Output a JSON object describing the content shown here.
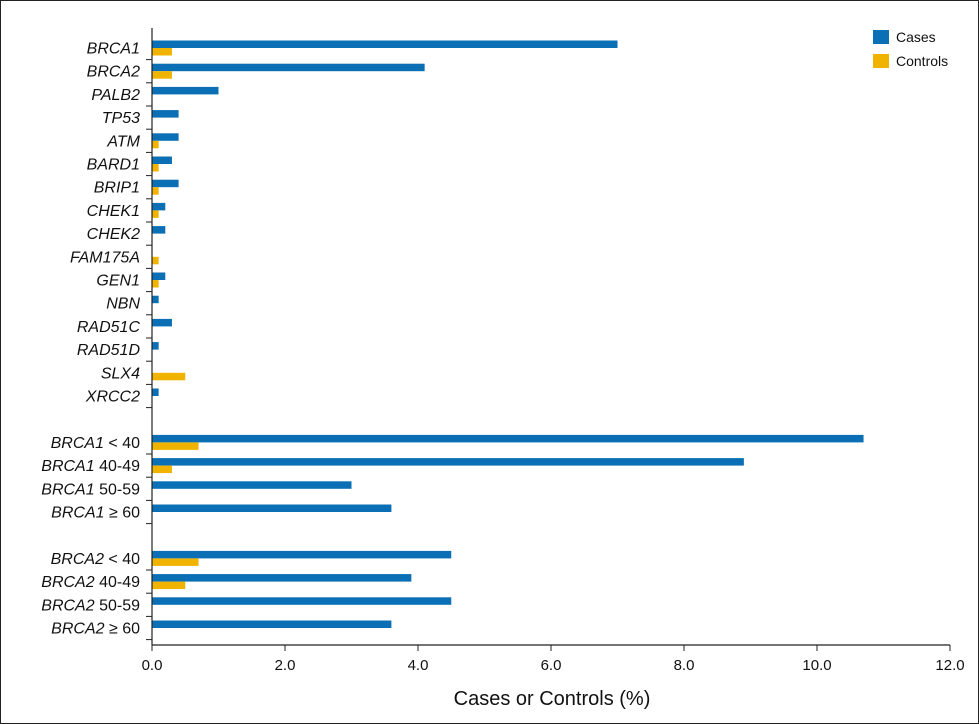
{
  "chart_data": {
    "type": "bar",
    "orientation": "horizontal",
    "xlabel": "Cases or Controls (%)",
    "xlim": [
      0,
      12
    ],
    "xticks": [
      "0.0",
      "2.0",
      "4.0",
      "6.0",
      "8.0",
      "10.0",
      "12.0"
    ],
    "grid": false,
    "legend_position": "top-right",
    "categories": [
      {
        "gene": "BRCA1",
        "suffix": ""
      },
      {
        "gene": "BRCA2",
        "suffix": ""
      },
      {
        "gene": "PALB2",
        "suffix": ""
      },
      {
        "gene": "TP53",
        "suffix": ""
      },
      {
        "gene": "ATM",
        "suffix": ""
      },
      {
        "gene": "BARD1",
        "suffix": ""
      },
      {
        "gene": "BRIP1",
        "suffix": ""
      },
      {
        "gene": "CHEK1",
        "suffix": ""
      },
      {
        "gene": "CHEK2",
        "suffix": ""
      },
      {
        "gene": "FAM175A",
        "suffix": ""
      },
      {
        "gene": "GEN1",
        "suffix": ""
      },
      {
        "gene": "NBN",
        "suffix": ""
      },
      {
        "gene": "RAD51C",
        "suffix": ""
      },
      {
        "gene": "RAD51D",
        "suffix": ""
      },
      {
        "gene": "SLX4",
        "suffix": ""
      },
      {
        "gene": "XRCC2",
        "suffix": ""
      },
      null,
      {
        "gene": "BRCA1",
        "suffix": " < 40"
      },
      {
        "gene": "BRCA1",
        "suffix": " 40-49"
      },
      {
        "gene": "BRCA1",
        "suffix": " 50-59"
      },
      {
        "gene": "BRCA1",
        "suffix": " ≥ 60"
      },
      null,
      {
        "gene": "BRCA2",
        "suffix": " < 40"
      },
      {
        "gene": "BRCA2",
        "suffix": " 40-49"
      },
      {
        "gene": "BRCA2",
        "suffix": " 50-59"
      },
      {
        "gene": "BRCA2",
        "suffix": " ≥ 60"
      }
    ],
    "series": [
      {
        "name": "Cases",
        "color": "#0a6fb4",
        "values": [
          7.0,
          4.1,
          1.0,
          0.4,
          0.4,
          0.3,
          0.4,
          0.2,
          0.2,
          0.0,
          0.2,
          0.1,
          0.3,
          0.1,
          0.0,
          0.1,
          null,
          10.7,
          8.9,
          3.0,
          3.6,
          null,
          4.5,
          3.9,
          4.5,
          3.6
        ]
      },
      {
        "name": "Controls",
        "color": "#f0b400",
        "values": [
          0.3,
          0.3,
          0.0,
          0.0,
          0.1,
          0.1,
          0.1,
          0.1,
          0.0,
          0.1,
          0.1,
          0.0,
          0.0,
          0.0,
          0.5,
          0.0,
          null,
          0.7,
          0.3,
          0.0,
          0.0,
          null,
          0.7,
          0.5,
          0.0,
          0.0
        ]
      }
    ]
  }
}
